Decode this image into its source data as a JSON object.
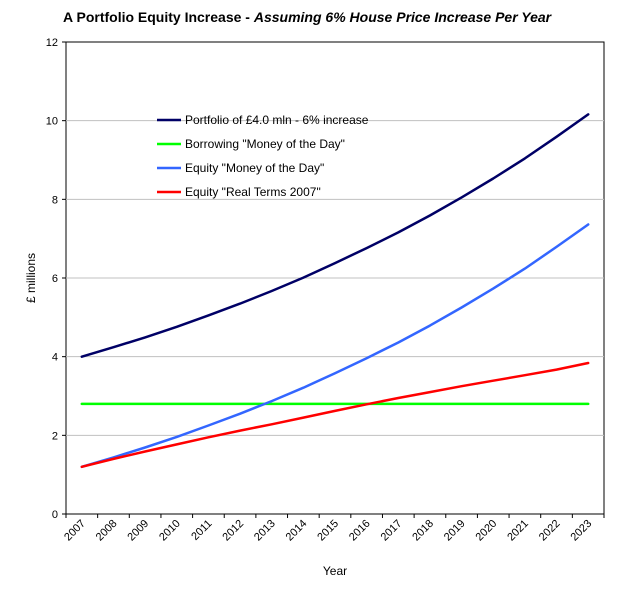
{
  "chart_data": {
    "type": "line",
    "title": "A Portfolio Equity Increase - ",
    "subtitle": "Assuming 6% House Price Increase Per Year",
    "xlabel": "Year",
    "ylabel": "£ millions",
    "ylim": [
      0,
      12
    ],
    "yticks": [
      0,
      2,
      4,
      6,
      8,
      10,
      12
    ],
    "categories": [
      "2007",
      "2008",
      "2009",
      "2010",
      "2011",
      "2012",
      "2013",
      "2014",
      "2015",
      "2016",
      "2017",
      "2018",
      "2019",
      "2020",
      "2021",
      "2022",
      "2023"
    ],
    "grid": true,
    "legend_position": "top-left",
    "series": [
      {
        "name": "Portfolio of £4.0 mln - 6% increase",
        "color": "#000066",
        "values": [
          4.0,
          4.24,
          4.49,
          4.76,
          5.05,
          5.35,
          5.67,
          6.01,
          6.38,
          6.76,
          7.16,
          7.59,
          8.05,
          8.53,
          9.04,
          9.59,
          10.16
        ]
      },
      {
        "name": "Borrowing \"Money of the Day\"",
        "color": "#00ff00",
        "values": [
          2.8,
          2.8,
          2.8,
          2.8,
          2.8,
          2.8,
          2.8,
          2.8,
          2.8,
          2.8,
          2.8,
          2.8,
          2.8,
          2.8,
          2.8,
          2.8,
          2.8
        ]
      },
      {
        "name": "Equity \"Money of the Day\"",
        "color": "#3366ff",
        "values": [
          1.2,
          1.44,
          1.69,
          1.96,
          2.25,
          2.55,
          2.87,
          3.21,
          3.58,
          3.96,
          4.36,
          4.79,
          5.25,
          5.73,
          6.24,
          6.79,
          7.36
        ]
      },
      {
        "name": "Equity \"Real Terms 2007\"",
        "color": "#ff0000",
        "values": [
          1.2,
          1.4,
          1.59,
          1.77,
          1.95,
          2.12,
          2.28,
          2.45,
          2.62,
          2.79,
          2.95,
          3.1,
          3.25,
          3.39,
          3.53,
          3.67,
          3.84
        ]
      }
    ]
  }
}
